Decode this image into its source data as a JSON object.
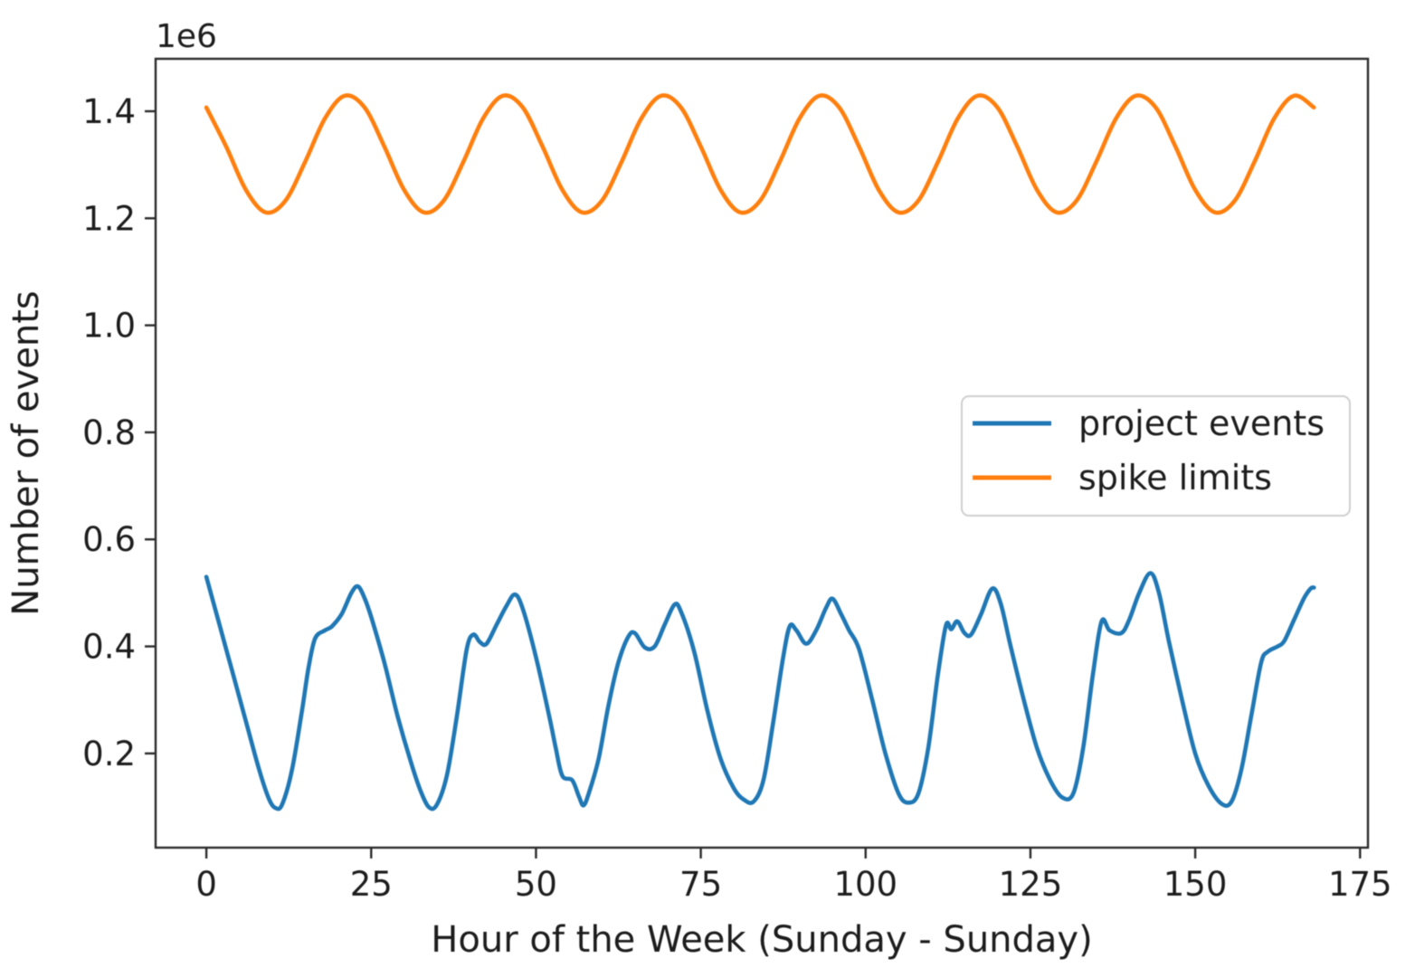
{
  "chart_data": {
    "type": "line",
    "title": "",
    "xlabel": "Hour of the Week (Sunday - Sunday)",
    "ylabel": "Number of events",
    "y_offset_text": "1e6",
    "xlim": [
      -7.7,
      176.2
    ],
    "ylim": [
      24000,
      1498000
    ],
    "xticks": [
      0,
      25,
      50,
      75,
      100,
      125,
      150,
      175
    ],
    "xtick_labels": [
      "0",
      "25",
      "50",
      "75",
      "100",
      "125",
      "150",
      "175"
    ],
    "yticks": [
      200000,
      400000,
      600000,
      800000,
      1000000,
      1200000,
      1400000
    ],
    "ytick_labels": [
      "0.2",
      "0.4",
      "0.6",
      "0.8",
      "1.0",
      "1.2",
      "1.4"
    ],
    "grid": false,
    "legend": {
      "position": "center-right",
      "items": [
        {
          "label": "project events",
          "color": "#1f77b4"
        },
        {
          "label": "spike limits",
          "color": "#ff7f0e"
        }
      ]
    },
    "series": [
      {
        "name": "project events",
        "color": "#1f77b4",
        "x": [
          0,
          2,
          4,
          6,
          8,
          9.5,
          10.5,
          11.5,
          13,
          14.5,
          15.5,
          16.5,
          18,
          19,
          20.5,
          22,
          23,
          24,
          25,
          27,
          29,
          31,
          32.5,
          33.8,
          35,
          36.5,
          38,
          39.5,
          40.5,
          41.5,
          42.5,
          44,
          45.5,
          46.8,
          48,
          50,
          52,
          53,
          54,
          55.5,
          56.5,
          57.2,
          58,
          59.5,
          61,
          62.5,
          64,
          65,
          66.5,
          68,
          69.5,
          71,
          72,
          74,
          76,
          78,
          80,
          81.5,
          83,
          84.5,
          86,
          87.5,
          88.5,
          89.5,
          91,
          92.5,
          94,
          95,
          96.3,
          97.5,
          99,
          101,
          103,
          105,
          106.5,
          108,
          109.5,
          111,
          112.2,
          113,
          113.9,
          115,
          116,
          117.5,
          119.2,
          120.5,
          122,
          124,
          126,
          128,
          129.8,
          131.5,
          133,
          134.5,
          135.8,
          137,
          138.8,
          140,
          141.5,
          143.2,
          144.5,
          146,
          148,
          150,
          152,
          154,
          155.5,
          157,
          158.5,
          160,
          161,
          162.5,
          163.5,
          165,
          166.5,
          167.5,
          168
        ],
        "y": [
          530000,
          440000,
          350000,
          260000,
          170000,
          115000,
          98000,
          105000,
          170000,
          280000,
          360000,
          415000,
          430000,
          437000,
          460000,
          500000,
          512000,
          490000,
          455000,
          370000,
          270000,
          185000,
          130000,
          99000,
          105000,
          160000,
          270000,
          395000,
          422000,
          408000,
          405000,
          440000,
          475000,
          497000,
          470000,
          380000,
          270000,
          210000,
          158000,
          150000,
          120000,
          103000,
          125000,
          190000,
          290000,
          370000,
          418000,
          425000,
          398000,
          400000,
          440000,
          478000,
          465000,
          390000,
          280000,
          190000,
          135000,
          114000,
          110000,
          150000,
          260000,
          380000,
          438000,
          430000,
          405000,
          430000,
          472000,
          489000,
          460000,
          430000,
          395000,
          300000,
          200000,
          125000,
          108000,
          125000,
          210000,
          350000,
          440000,
          432000,
          447000,
          425000,
          422000,
          460000,
          508000,
          480000,
          400000,
          300000,
          210000,
          150000,
          118000,
          125000,
          210000,
          350000,
          447000,
          430000,
          425000,
          450000,
          500000,
          537000,
          500000,
          410000,
          300000,
          200000,
          140000,
          106000,
          110000,
          170000,
          270000,
          370000,
          390000,
          400000,
          410000,
          450000,
          490000,
          508000,
          510000
        ]
      },
      {
        "name": "spike limits",
        "color": "#ff7f0e",
        "x": [
          0,
          3,
          6,
          9,
          12,
          15,
          18,
          21,
          24,
          27,
          30,
          33,
          36,
          39,
          42,
          45,
          48,
          51,
          54,
          57,
          60,
          63,
          66,
          69,
          72,
          75,
          78,
          81,
          84,
          87,
          90,
          93,
          96,
          99,
          102,
          105,
          108,
          111,
          114,
          117,
          120,
          123,
          126,
          129,
          132,
          135,
          138,
          141,
          144,
          147,
          150,
          153,
          156,
          159,
          162,
          165,
          168
        ],
        "y": [
          1407000,
          1334000,
          1253000,
          1211000,
          1233000,
          1306000,
          1387000,
          1429000,
          1407000,
          1334000,
          1253000,
          1211000,
          1233000,
          1306000,
          1387000,
          1429000,
          1407000,
          1334000,
          1253000,
          1211000,
          1233000,
          1306000,
          1387000,
          1429000,
          1407000,
          1334000,
          1253000,
          1211000,
          1233000,
          1306000,
          1387000,
          1429000,
          1407000,
          1334000,
          1253000,
          1211000,
          1233000,
          1306000,
          1387000,
          1429000,
          1407000,
          1334000,
          1253000,
          1211000,
          1233000,
          1306000,
          1387000,
          1429000,
          1407000,
          1334000,
          1253000,
          1211000,
          1233000,
          1306000,
          1387000,
          1429000,
          1407000
        ]
      }
    ]
  }
}
